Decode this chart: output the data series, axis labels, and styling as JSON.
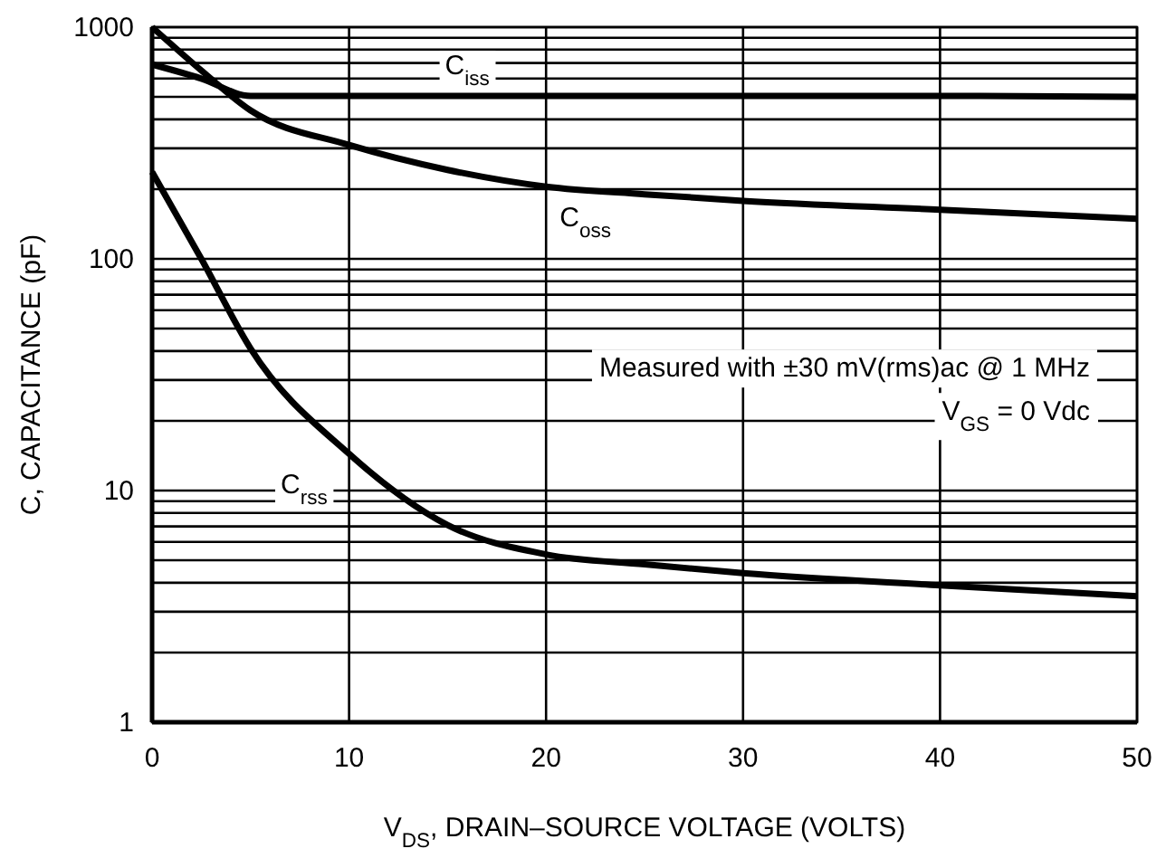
{
  "chart_data": {
    "type": "line",
    "xlabel": "V$_{DS}$, DRAIN–SOURCE VOLTAGE (VOLTS)",
    "ylabel": "C, CAPACITANCE (pF)",
    "log": "y",
    "grid": true,
    "marker": "none",
    "line_style": "solid",
    "x": [
      0,
      2.5,
      5,
      10,
      15,
      20,
      25,
      30,
      40,
      50
    ],
    "series": [
      {
        "name": "C$_{iss}$",
        "color": "#000000",
        "values": [
          690,
          600,
          505,
          505,
          505,
          505,
          505,
          505,
          505,
          500
        ]
      },
      {
        "name": "C$_{oss}$",
        "color": "#000000",
        "values": [
          1000,
          650,
          437,
          310,
          242,
          205,
          190,
          178,
          163,
          149
        ]
      },
      {
        "name": "C$_{rss}$",
        "color": "#000000",
        "values": [
          237,
          100,
          41,
          14.4,
          7.1,
          5.3,
          4.8,
          4.4,
          3.9,
          3.5
        ]
      }
    ],
    "xlim": [
      0,
      50
    ],
    "xticks": [
      0,
      10,
      20,
      30,
      40,
      50
    ],
    "ylim": [
      1,
      1000
    ],
    "yticks": [
      1,
      {
        "value": 2,
        "label": null
      },
      {
        "value": 3,
        "label": null
      },
      {
        "value": 4,
        "label": null
      },
      {
        "value": 5,
        "label": null
      },
      {
        "value": 6,
        "label": null
      },
      {
        "value": 7,
        "label": null
      },
      {
        "value": 8,
        "label": null
      },
      {
        "value": 9,
        "label": null
      },
      10,
      {
        "value": 20,
        "label": null
      },
      {
        "value": 30,
        "label": null
      },
      {
        "value": 40,
        "label": null
      },
      {
        "value": 50,
        "label": null
      },
      {
        "value": 60,
        "label": null
      },
      {
        "value": 70,
        "label": null
      },
      {
        "value": 80,
        "label": null
      },
      {
        "value": 90,
        "label": null
      },
      100,
      {
        "value": 200,
        "label": null
      },
      {
        "value": 300,
        "label": null
      },
      {
        "value": 400,
        "label": null
      },
      {
        "value": 500,
        "label": null
      },
      {
        "value": 600,
        "label": null
      },
      {
        "value": 700,
        "label": null
      },
      {
        "value": 800,
        "label": null
      },
      {
        "value": 900,
        "label": null
      },
      1000
    ],
    "annotations": [
      "Measured with ±30 mV(rms)ac @ 1 MHz",
      "V$_{GS}$ = 0 Vdc"
    ]
  }
}
